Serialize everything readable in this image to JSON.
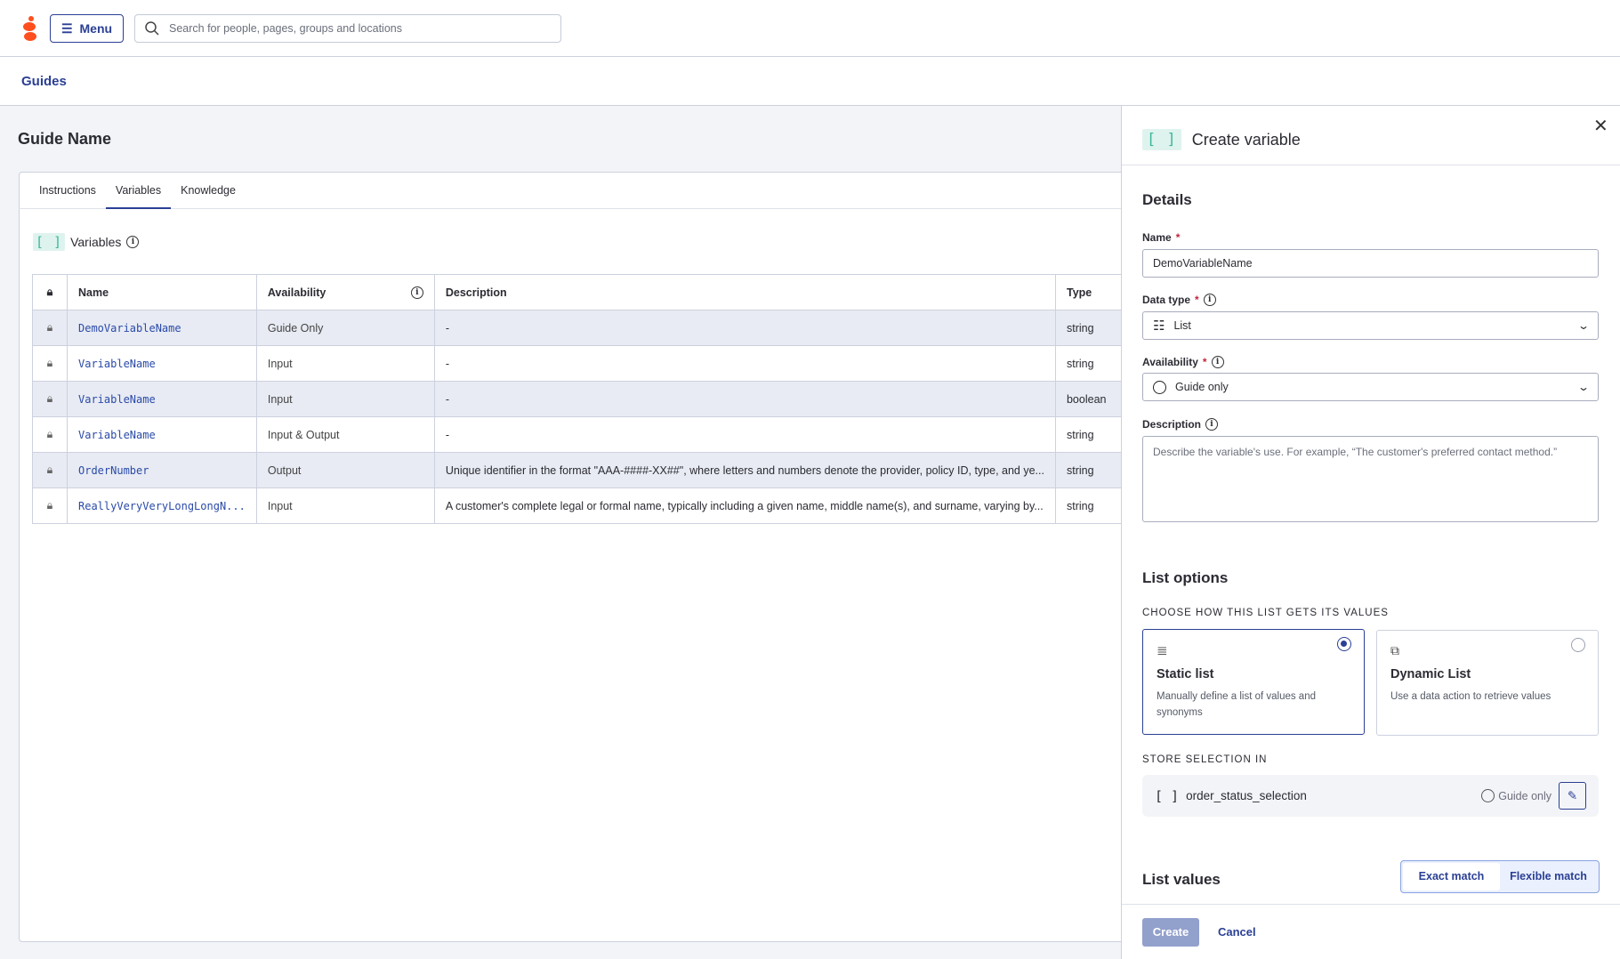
{
  "header": {
    "menu_label": "Menu",
    "search_placeholder": "Search for people, pages, groups and locations",
    "brand_color": "#ff4f1f"
  },
  "breadcrumb": {
    "label": "Guides"
  },
  "page": {
    "title": "Guide Name",
    "tabs": [
      {
        "label": "Instructions"
      },
      {
        "label": "Variables",
        "active": true
      },
      {
        "label": "Knowledge"
      }
    ],
    "variables_heading": "Variables",
    "table": {
      "headers": {
        "name": "Name",
        "availability": "Availability",
        "description": "Description",
        "type": "Type"
      },
      "rows": [
        {
          "name": "DemoVariableName",
          "availability": "Guide Only",
          "description": "-",
          "type": "string"
        },
        {
          "name": "VariableName",
          "availability": "Input",
          "description": "-",
          "type": "string"
        },
        {
          "name": "VariableName",
          "availability": "Input",
          "description": "-",
          "type": "boolean"
        },
        {
          "name": "VariableName",
          "availability": "Input & Output",
          "description": "-",
          "type": "string"
        },
        {
          "name": "OrderNumber",
          "availability": "Output",
          "description": "Unique identifier in the format \"AAA-####-XX##\", where letters and numbers denote the provider, policy ID, type, and ye...",
          "type": "string"
        },
        {
          "name": "ReallyVeryVeryLongLongN...",
          "availability": "Input",
          "description": "A customer's complete legal or formal name, typically including a given name, middle name(s), and surname, varying by...",
          "type": "string"
        }
      ]
    }
  },
  "panel": {
    "title": "Create variable",
    "details_heading": "Details",
    "name_label": "Name",
    "name_value": "DemoVariableName",
    "data_type_label": "Data type",
    "data_type_value": "List",
    "availability_label": "Availability",
    "availability_value": "Guide only",
    "description_label": "Description",
    "description_placeholder": "Describe the variable's use. For example, “The customer's preferred contact method.”",
    "list_options_heading": "List options",
    "choose_label": "CHOOSE HOW THIS LIST GETS ITS VALUES",
    "options": [
      {
        "title": "Static list",
        "desc": "Manually define a list of values and synonyms",
        "selected": true
      },
      {
        "title": "Dynamic List",
        "desc": "Use a data action to retrieve values",
        "selected": false
      }
    ],
    "store_label": "STORE SELECTION IN",
    "store_variable": "order_status_selection",
    "store_availability": "Guide only",
    "list_values_heading": "List values",
    "match_options": [
      "Exact match",
      "Flexible match"
    ],
    "create_label": "Create",
    "cancel_label": "Cancel"
  }
}
